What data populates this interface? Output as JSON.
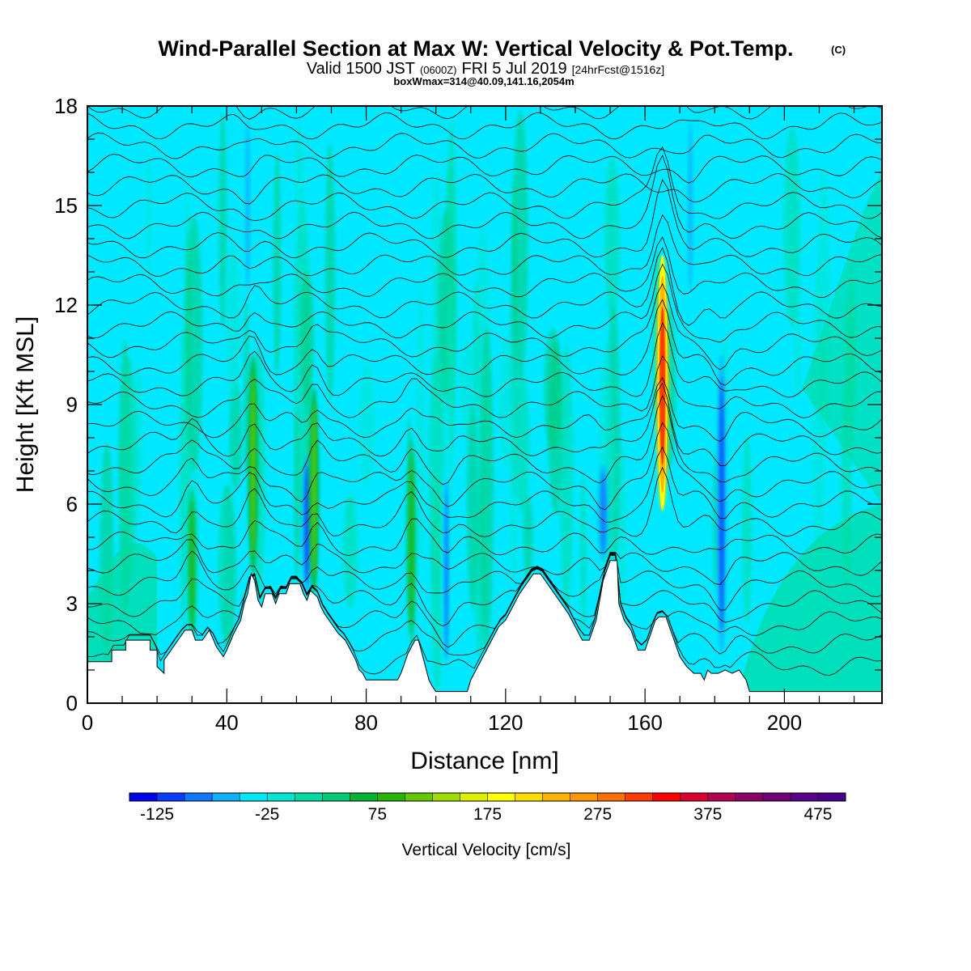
{
  "title": {
    "main": "Wind-Parallel Section at Max W: Vertical Velocity & Pot.Temp.",
    "copyright": "(C)",
    "valid_prefix": "Valid 1500 JST",
    "valid_utc": "(0600Z)",
    "valid_date": "FRI 5 Jul 2019",
    "forecast": "[24hrFcst@1516z]",
    "boxwmax": "boxWmax=314@40.09,141.16,2054m"
  },
  "colors": {
    "background_field": "#00e8ff",
    "terrain": "#ffffff",
    "contour": "#000000",
    "frame": "#000000"
  },
  "chart_data": {
    "type": "heatmap",
    "xlabel": "Distance [nm]",
    "ylabel": "Height [Kft MSL]",
    "xlim": [
      0,
      228
    ],
    "ylim": [
      0,
      18
    ],
    "x_ticks": [
      "0",
      "40",
      "80",
      "120",
      "160",
      "200"
    ],
    "y_ticks": [
      "0",
      "3",
      "6",
      "9",
      "12",
      "15",
      "18"
    ],
    "x_tick_values": [
      0,
      40,
      80,
      120,
      160,
      200
    ],
    "y_tick_values": [
      0,
      3,
      6,
      9,
      12,
      15,
      18
    ],
    "colorbar": {
      "label": "Vertical Velocity [cm/s]",
      "tick_labels": [
        "-125",
        "-25",
        "75",
        "175",
        "275",
        "375",
        "475"
      ],
      "tick_values": [
        -125,
        -25,
        75,
        175,
        275,
        375,
        475
      ],
      "range": [
        -150,
        500
      ],
      "step": 25,
      "colors": [
        "#0000ee",
        "#0a3cff",
        "#0f78ff",
        "#0fb0ff",
        "#00e8ff",
        "#00e6d2",
        "#00dca0",
        "#00cc78",
        "#00b432",
        "#28b400",
        "#64c800",
        "#a0dc00",
        "#dcf000",
        "#ffff00",
        "#ffdc00",
        "#ffb400",
        "#ff9600",
        "#ff6e00",
        "#ff3c00",
        "#ff0000",
        "#dc0032",
        "#b40050",
        "#8c0064",
        "#6e0078",
        "#5a008c",
        "#46008c"
      ]
    },
    "terrain_profile_kft": [
      [
        0,
        1.25
      ],
      [
        7,
        1.25
      ],
      [
        7,
        1.6
      ],
      [
        11,
        1.6
      ],
      [
        11,
        1.9
      ],
      [
        18,
        1.9
      ],
      [
        18,
        1.6
      ],
      [
        20,
        1.6
      ],
      [
        20,
        1.1
      ],
      [
        22,
        0.9
      ],
      [
        22,
        1.3
      ],
      [
        24,
        1.6
      ],
      [
        26,
        1.9
      ],
      [
        28,
        2.2
      ],
      [
        30,
        2.2
      ],
      [
        31,
        1.9
      ],
      [
        33,
        1.9
      ],
      [
        35,
        2.2
      ],
      [
        37,
        1.7
      ],
      [
        39,
        1.4
      ],
      [
        40,
        1.6
      ],
      [
        42,
        2.1
      ],
      [
        44,
        2.5
      ],
      [
        45,
        3.0
      ],
      [
        46,
        3.3
      ],
      [
        47,
        3.9
      ],
      [
        48,
        3.7
      ],
      [
        49,
        3.1
      ],
      [
        50,
        2.9
      ],
      [
        51,
        3.3
      ],
      [
        53,
        3.3
      ],
      [
        54,
        3.0
      ],
      [
        55,
        3.3
      ],
      [
        57,
        3.3
      ],
      [
        58,
        3.6
      ],
      [
        61,
        3.6
      ],
      [
        62,
        3.3
      ],
      [
        63,
        3.1
      ],
      [
        64,
        3.4
      ],
      [
        66,
        3.2
      ],
      [
        67,
        2.9
      ],
      [
        68,
        2.7
      ],
      [
        70,
        2.4
      ],
      [
        72,
        2.1
      ],
      [
        74,
        1.9
      ],
      [
        76,
        1.5
      ],
      [
        77,
        1.3
      ],
      [
        78,
        1.0
      ],
      [
        79,
        0.9
      ],
      [
        80,
        0.7
      ],
      [
        89,
        0.7
      ],
      [
        90,
        0.9
      ],
      [
        91,
        1.2
      ],
      [
        92,
        1.5
      ],
      [
        93,
        1.7
      ],
      [
        94,
        1.9
      ],
      [
        95,
        1.9
      ],
      [
        96,
        1.5
      ],
      [
        97,
        1.1
      ],
      [
        98,
        0.7
      ],
      [
        99,
        0.5
      ],
      [
        100,
        0.35
      ],
      [
        109,
        0.35
      ],
      [
        110,
        0.7
      ],
      [
        112,
        1.1
      ],
      [
        114,
        1.5
      ],
      [
        116,
        1.9
      ],
      [
        118,
        2.3
      ],
      [
        120,
        2.5
      ],
      [
        122,
        2.9
      ],
      [
        124,
        3.3
      ],
      [
        126,
        3.6
      ],
      [
        128,
        3.9
      ],
      [
        130,
        3.9
      ],
      [
        132,
        3.6
      ],
      [
        134,
        3.3
      ],
      [
        136,
        3.0
      ],
      [
        138,
        2.7
      ],
      [
        140,
        2.3
      ],
      [
        142,
        1.9
      ],
      [
        144,
        1.9
      ],
      [
        146,
        2.5
      ],
      [
        147,
        3.1
      ],
      [
        148,
        3.7
      ],
      [
        150,
        4.3
      ],
      [
        152,
        4.3
      ],
      [
        152.5,
        3.0
      ],
      [
        154,
        2.5
      ],
      [
        156,
        2.2
      ],
      [
        157,
        1.9
      ],
      [
        158,
        1.6
      ],
      [
        160,
        1.6
      ],
      [
        161,
        1.9
      ],
      [
        162,
        2.2
      ],
      [
        163,
        2.5
      ],
      [
        164,
        2.6
      ],
      [
        166,
        2.6
      ],
      [
        167,
        2.3
      ],
      [
        168,
        2.0
      ],
      [
        169,
        1.7
      ],
      [
        170,
        1.4
      ],
      [
        172,
        1.1
      ],
      [
        174,
        0.9
      ],
      [
        176,
        0.9
      ],
      [
        177,
        0.7
      ],
      [
        178,
        1.0
      ],
      [
        179,
        0.9
      ],
      [
        181,
        0.9
      ],
      [
        183,
        1.0
      ],
      [
        185,
        0.9
      ],
      [
        187,
        1.0
      ],
      [
        189,
        0.7
      ],
      [
        190,
        0.35
      ],
      [
        191,
        0.35
      ],
      [
        228,
        0.35
      ]
    ],
    "vertical_velocity_features": [
      {
        "x": 30,
        "z_bottom": 1.9,
        "z_top": 6.5,
        "w_cm_s": 90
      },
      {
        "x": 47.5,
        "z_bottom": 3.9,
        "z_top": 10.5,
        "w_cm_s": 100
      },
      {
        "x": 63,
        "z_bottom": 3.3,
        "z_top": 7.5,
        "w_cm_s": -120
      },
      {
        "x": 65,
        "z_bottom": 3.3,
        "z_top": 9.5,
        "w_cm_s": 100
      },
      {
        "x": 93,
        "z_bottom": 1.8,
        "z_top": 8.0,
        "w_cm_s": 85
      },
      {
        "x": 103,
        "z_bottom": 0.8,
        "z_top": 7.2,
        "w_cm_s": -90
      },
      {
        "x": 148,
        "z_bottom": 4.3,
        "z_top": 7.2,
        "w_cm_s": -100
      },
      {
        "x": 165,
        "z_bottom": 5.8,
        "z_top": 13.5,
        "w_cm_s": 314
      },
      {
        "x": 182,
        "z_bottom": 1.5,
        "z_top": 10.5,
        "w_cm_s": -110
      },
      {
        "x": 46,
        "z_bottom": 12.0,
        "z_top": 18.0,
        "w_cm_s": -60
      },
      {
        "x": 173,
        "z_bottom": 12.0,
        "z_top": 18.0,
        "w_cm_s": -60
      }
    ]
  }
}
